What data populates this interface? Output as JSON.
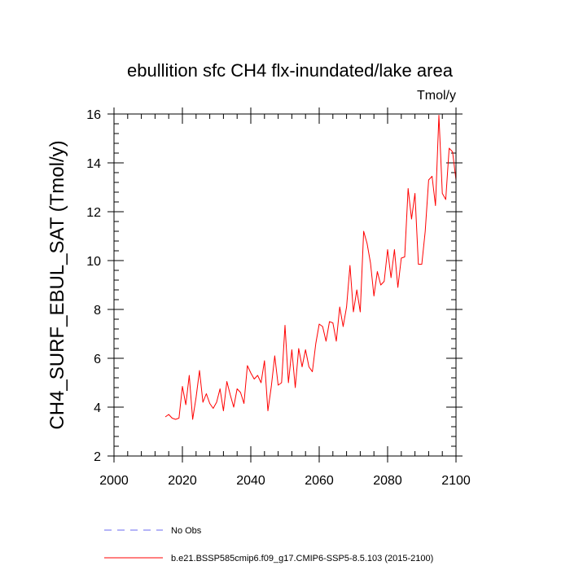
{
  "chart_data": {
    "type": "line",
    "title": "ebullition sfc CH4 flx-inundated/lake area",
    "units": "Tmol/y",
    "ylabel": "CH4_SURF_EBUL_SAT  (Tmol/y)",
    "xlabel": "",
    "xlim": [
      2000,
      2100
    ],
    "ylim": [
      2,
      16
    ],
    "xticks": [
      2000,
      2020,
      2040,
      2060,
      2080,
      2100
    ],
    "yticks": [
      2,
      4,
      6,
      8,
      10,
      12,
      14,
      16
    ],
    "grid": false,
    "series": [
      {
        "name": "No Obs",
        "color": "#6a6af0",
        "dash": true,
        "x": [],
        "values": []
      },
      {
        "name": "b.e21.BSSP585cmip6.f09_g17.CMIP6-SSP5-8.5.103 (2015-2100)",
        "color": "#ff0000",
        "dash": false,
        "x": [
          2015,
          2016,
          2017,
          2018,
          2019,
          2020,
          2021,
          2022,
          2023,
          2024,
          2025,
          2026,
          2027,
          2028,
          2029,
          2030,
          2031,
          2032,
          2033,
          2034,
          2035,
          2036,
          2037,
          2038,
          2039,
          2040,
          2041,
          2042,
          2043,
          2044,
          2045,
          2046,
          2047,
          2048,
          2049,
          2050,
          2051,
          2052,
          2053,
          2054,
          2055,
          2056,
          2057,
          2058,
          2059,
          2060,
          2061,
          2062,
          2063,
          2064,
          2065,
          2066,
          2067,
          2068,
          2069,
          2070,
          2071,
          2072,
          2073,
          2074,
          2075,
          2076,
          2077,
          2078,
          2079,
          2080,
          2081,
          2082,
          2083,
          2084,
          2085,
          2086,
          2087,
          2088,
          2089,
          2090,
          2091,
          2092,
          2093,
          2094,
          2095,
          2096,
          2097,
          2098,
          2099,
          2100
        ],
        "values": [
          3.6,
          3.7,
          3.55,
          3.5,
          3.55,
          4.85,
          4.1,
          5.3,
          3.5,
          4.4,
          5.5,
          4.2,
          4.55,
          4.15,
          3.95,
          4.2,
          4.75,
          3.85,
          5.05,
          4.5,
          4.0,
          4.75,
          4.6,
          4.15,
          5.7,
          5.4,
          5.15,
          5.3,
          5.0,
          5.9,
          3.85,
          4.85,
          6.1,
          4.9,
          5.0,
          7.35,
          5.0,
          6.35,
          4.8,
          6.4,
          5.65,
          6.35,
          5.65,
          5.45,
          6.6,
          7.4,
          7.3,
          6.7,
          7.5,
          7.45,
          6.7,
          8.1,
          7.3,
          8.1,
          9.8,
          7.9,
          8.8,
          7.9,
          11.2,
          10.7,
          9.9,
          8.55,
          9.55,
          9.0,
          9.15,
          10.45,
          9.3,
          10.45,
          8.9,
          10.1,
          10.15,
          12.95,
          11.7,
          12.75,
          9.85,
          9.85,
          11.2,
          13.3,
          13.45,
          12.25,
          15.95,
          12.75,
          12.5,
          14.6,
          14.45,
          13.3
        ]
      }
    ]
  }
}
